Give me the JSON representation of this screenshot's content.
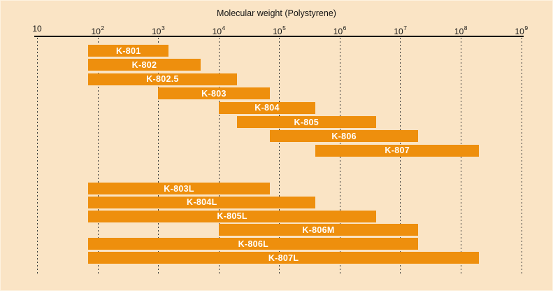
{
  "colors": {
    "background": "#FAE4C5",
    "bar": "#EE8F0D",
    "bar_label": "#FFFFFF",
    "axis": "#141414",
    "gridline": "#3A3A3A"
  },
  "chart_data": {
    "type": "bar",
    "subtype": "horizontal-log-range",
    "title": "Molecular weight (Polystyrene)",
    "xlabel": "Molecular weight (Polystyrene)",
    "x_scale": "log10",
    "xlim": [
      10,
      1000000000
    ],
    "x_tick_base": "10",
    "x_tick_exponents": [
      1,
      2,
      3,
      4,
      5,
      6,
      7,
      8,
      9
    ],
    "grid": "vertical-dashed",
    "legend": "none",
    "series": [
      {
        "name": "K-801",
        "range": [
          70,
          1500
        ],
        "group": 0
      },
      {
        "name": "K-802",
        "range": [
          70,
          5000
        ],
        "group": 0
      },
      {
        "name": "K-802.5",
        "range": [
          70,
          20000
        ],
        "group": 0
      },
      {
        "name": "K-803",
        "range": [
          1000,
          70000
        ],
        "group": 0
      },
      {
        "name": "K-804",
        "range": [
          10000,
          400000
        ],
        "group": 0
      },
      {
        "name": "K-805",
        "range": [
          20000,
          4000000
        ],
        "group": 0
      },
      {
        "name": "K-806",
        "range": [
          70000,
          20000000
        ],
        "group": 0
      },
      {
        "name": "K-807",
        "range": [
          400000,
          200000000
        ],
        "group": 0
      },
      {
        "name": "K-803L",
        "range": [
          70,
          70000
        ],
        "group": 1
      },
      {
        "name": "K-804L",
        "range": [
          70,
          400000
        ],
        "group": 1
      },
      {
        "name": "K-805L",
        "range": [
          70,
          4000000
        ],
        "group": 1
      },
      {
        "name": "K-806M",
        "range": [
          10000,
          20000000
        ],
        "group": 1
      },
      {
        "name": "K-806L",
        "range": [
          70,
          20000000
        ],
        "group": 1
      },
      {
        "name": "K-807L",
        "range": [
          70,
          200000000
        ],
        "group": 1
      }
    ]
  }
}
